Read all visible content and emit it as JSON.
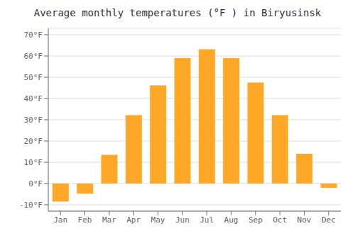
{
  "chart_data": {
    "type": "bar",
    "title": "Average monthly temperatures (°F ) in Biryusinsk",
    "categories": [
      "Jan",
      "Feb",
      "Mar",
      "Apr",
      "May",
      "Jun",
      "Jul",
      "Aug",
      "Sep",
      "Oct",
      "Nov",
      "Dec"
    ],
    "values": [
      -8.5,
      -4.8,
      13.5,
      32.2,
      46.2,
      59.0,
      63.2,
      59.0,
      47.5,
      32.2,
      14.0,
      -2.0
    ],
    "color": "#FFA726",
    "ylim": [
      -13,
      73
    ],
    "yticks": [
      {
        "value": -10,
        "label": "-10°F"
      },
      {
        "value": 0,
        "label": "0°F"
      },
      {
        "value": 10,
        "label": "10°F"
      },
      {
        "value": 20,
        "label": "20°F"
      },
      {
        "value": 30,
        "label": "30°F"
      },
      {
        "value": 40,
        "label": "40°F"
      },
      {
        "value": 50,
        "label": "50°F"
      },
      {
        "value": 60,
        "label": "60°F"
      },
      {
        "value": 70,
        "label": "70°F"
      }
    ],
    "grid": true
  }
}
